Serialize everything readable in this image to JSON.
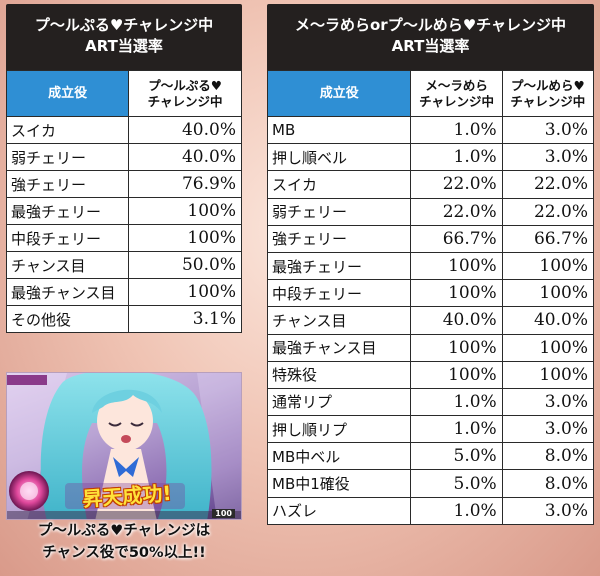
{
  "left": {
    "title_line1": "プ～ルぷる♥チャレンジ中",
    "title_line2": "ART当選率",
    "header_name": "成立役",
    "header_col_line1": "プ～ルぷる♥",
    "header_col_line2": "チャレンジ中",
    "rows": [
      {
        "name": "スイカ",
        "v": "40.0%"
      },
      {
        "name": "弱チェリー",
        "v": "40.0%"
      },
      {
        "name": "強チェリー",
        "v": "76.9%"
      },
      {
        "name": "最強チェリー",
        "v": "100%"
      },
      {
        "name": "中段チェリー",
        "v": "100%"
      },
      {
        "name": "チャンス目",
        "v": "50.0%"
      },
      {
        "name": "最強チャンス目",
        "v": "100%"
      },
      {
        "name": "その他役",
        "v": "3.1%"
      }
    ]
  },
  "right": {
    "title_line1": "メ～ラめらorプ～ルめら♥チャレンジ中",
    "title_line2": "ART当選率",
    "header_name": "成立役",
    "header_col1_line1": "メ～ラめら",
    "header_col1_line2": "チャレンジ中",
    "header_col2_line1": "プ～ルめら♥",
    "header_col2_line2": "チャレンジ中",
    "rows": [
      {
        "name": "MB",
        "a": "1.0%",
        "b": "3.0%"
      },
      {
        "name": "押し順ベル",
        "a": "1.0%",
        "b": "3.0%"
      },
      {
        "name": "スイカ",
        "a": "22.0%",
        "b": "22.0%"
      },
      {
        "name": "弱チェリー",
        "a": "22.0%",
        "b": "22.0%"
      },
      {
        "name": "強チェリー",
        "a": "66.7%",
        "b": "66.7%"
      },
      {
        "name": "最強チェリー",
        "a": "100%",
        "b": "100%"
      },
      {
        "name": "中段チェリー",
        "a": "100%",
        "b": "100%"
      },
      {
        "name": "チャンス目",
        "a": "40.0%",
        "b": "40.0%"
      },
      {
        "name": "最強チャンス目",
        "a": "100%",
        "b": "100%"
      },
      {
        "name": "特殊役",
        "a": "100%",
        "b": "100%"
      },
      {
        "name": "通常リプ",
        "a": "1.0%",
        "b": "3.0%"
      },
      {
        "name": "押し順リプ",
        "a": "1.0%",
        "b": "3.0%"
      },
      {
        "name": "MB中ベル",
        "a": "5.0%",
        "b": "8.0%"
      },
      {
        "name": "MB中1確役",
        "a": "5.0%",
        "b": "8.0%"
      },
      {
        "name": "ハズレ",
        "a": "1.0%",
        "b": "3.0%"
      }
    ]
  },
  "thumbnail": {
    "banner_text": "昇天成功!",
    "counter_text": "100"
  },
  "caption": {
    "line1": "プ～ルぷる♥チャレンジは",
    "line2": "チャンス役で50%以上!!"
  }
}
